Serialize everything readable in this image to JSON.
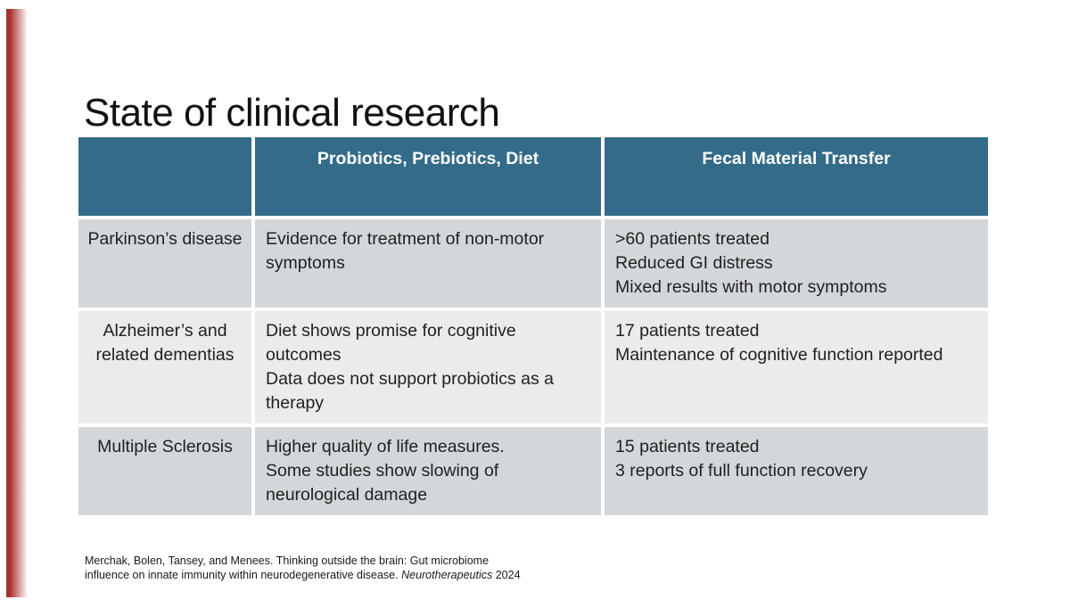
{
  "slide": {
    "title": "State of clinical research",
    "citation": {
      "text": "Merchak, Bolen, Tansey, and Menees. Thinking outside the brain: Gut microbiome influence on innate immunity within neurodegenerative disease.",
      "journal": "Neurotherapeutics",
      "year": "2024"
    }
  },
  "table": {
    "columns": [
      "",
      "Probiotics, Prebiotics, Diet",
      "Fecal Material Transfer"
    ],
    "rows": [
      {
        "condition": "Parkinson’s disease",
        "probiotics": [
          "Evidence for treatment of non-motor symptoms"
        ],
        "fecal": [
          ">60 patients treated",
          "Reduced GI distress",
          "Mixed results with motor symptoms"
        ]
      },
      {
        "condition": "Alzheimer’s and related dementias",
        "probiotics": [
          "Diet shows promise for cognitive outcomes",
          "Data does not support probiotics as a therapy"
        ],
        "fecal": [
          "17 patients treated",
          "Maintenance of cognitive function reported"
        ]
      },
      {
        "condition": "Multiple Sclerosis",
        "probiotics": [
          "Higher quality of life measures.",
          "Some studies show slowing of neurological damage"
        ],
        "fecal": [
          "15 patients treated",
          "3 reports of full function recovery"
        ]
      }
    ]
  },
  "colors": {
    "accent_red": "#a93330",
    "header_teal": "#336b89",
    "row_dark": "#d3d7da",
    "row_light": "#e9ebec"
  }
}
